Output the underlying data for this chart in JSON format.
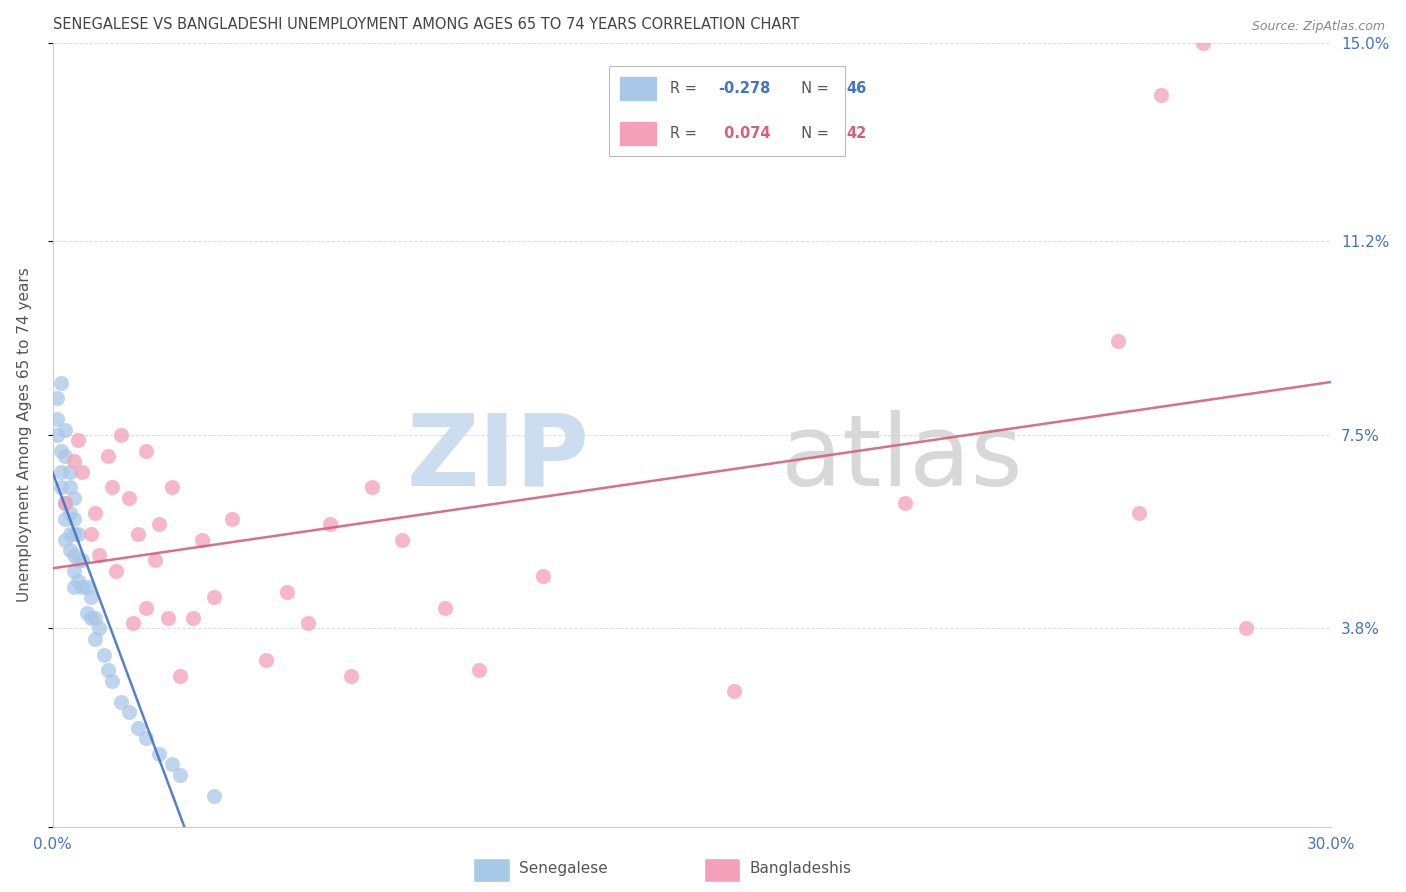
{
  "title": "SENEGALESE VS BANGLADESHI UNEMPLOYMENT AMONG AGES 65 TO 74 YEARS CORRELATION CHART",
  "source": "Source: ZipAtlas.com",
  "ylabel": "Unemployment Among Ages 65 to 74 years",
  "xlim": [
    0.0,
    0.3
  ],
  "ylim": [
    0.0,
    0.15
  ],
  "xtick_positions": [
    0.0,
    0.05,
    0.1,
    0.15,
    0.2,
    0.25,
    0.3
  ],
  "xticklabels": [
    "0.0%",
    "",
    "",
    "",
    "",
    "",
    "30.0%"
  ],
  "ytick_positions": [
    0.0,
    0.038,
    0.075,
    0.112,
    0.15
  ],
  "ytick_labels_right": [
    "",
    "3.8%",
    "7.5%",
    "11.2%",
    "15.0%"
  ],
  "legend_blue_label": "Senegalese",
  "legend_pink_label": "Bangladeshis",
  "blue_scatter_color": "#a8c8e8",
  "pink_scatter_color": "#f4a0b8",
  "blue_line_color": "#4472c4",
  "pink_line_color": "#d4607a",
  "blue_line_dash_color": "#aabbdd",
  "title_color": "#444444",
  "source_color": "#888888",
  "tick_color": "#4472c4",
  "grid_color": "#dddddd",
  "background_color": "#ffffff",
  "senegalese_x": [
    0.001,
    0.001,
    0.001,
    0.002,
    0.002,
    0.002,
    0.002,
    0.003,
    0.003,
    0.003,
    0.003,
    0.003,
    0.004,
    0.004,
    0.004,
    0.004,
    0.004,
    0.005,
    0.005,
    0.005,
    0.005,
    0.005,
    0.005,
    0.006,
    0.006,
    0.006,
    0.007,
    0.007,
    0.008,
    0.008,
    0.009,
    0.009,
    0.01,
    0.01,
    0.011,
    0.012,
    0.013,
    0.014,
    0.016,
    0.018,
    0.02,
    0.022,
    0.025,
    0.028,
    0.03,
    0.038
  ],
  "senegalese_y": [
    0.082,
    0.075,
    0.078,
    0.085,
    0.072,
    0.068,
    0.065,
    0.076,
    0.071,
    0.062,
    0.059,
    0.055,
    0.068,
    0.065,
    0.06,
    0.056,
    0.053,
    0.063,
    0.059,
    0.056,
    0.052,
    0.049,
    0.046,
    0.056,
    0.051,
    0.047,
    0.051,
    0.046,
    0.046,
    0.041,
    0.044,
    0.04,
    0.04,
    0.036,
    0.038,
    0.033,
    0.03,
    0.028,
    0.024,
    0.022,
    0.019,
    0.017,
    0.014,
    0.012,
    0.01,
    0.006
  ],
  "bangladeshi_x": [
    0.003,
    0.005,
    0.006,
    0.007,
    0.009,
    0.01,
    0.011,
    0.013,
    0.014,
    0.015,
    0.016,
    0.018,
    0.019,
    0.02,
    0.022,
    0.022,
    0.024,
    0.025,
    0.027,
    0.028,
    0.03,
    0.033,
    0.035,
    0.038,
    0.042,
    0.05,
    0.055,
    0.06,
    0.065,
    0.07,
    0.075,
    0.082,
    0.092,
    0.1,
    0.115,
    0.16,
    0.2,
    0.25,
    0.255,
    0.26,
    0.27,
    0.28
  ],
  "bangladeshi_y": [
    0.062,
    0.07,
    0.074,
    0.068,
    0.056,
    0.06,
    0.052,
    0.071,
    0.065,
    0.049,
    0.075,
    0.063,
    0.039,
    0.056,
    0.042,
    0.072,
    0.051,
    0.058,
    0.04,
    0.065,
    0.029,
    0.04,
    0.055,
    0.044,
    0.059,
    0.032,
    0.045,
    0.039,
    0.058,
    0.029,
    0.065,
    0.055,
    0.042,
    0.03,
    0.048,
    0.026,
    0.062,
    0.093,
    0.06,
    0.14,
    0.15,
    0.038
  ]
}
